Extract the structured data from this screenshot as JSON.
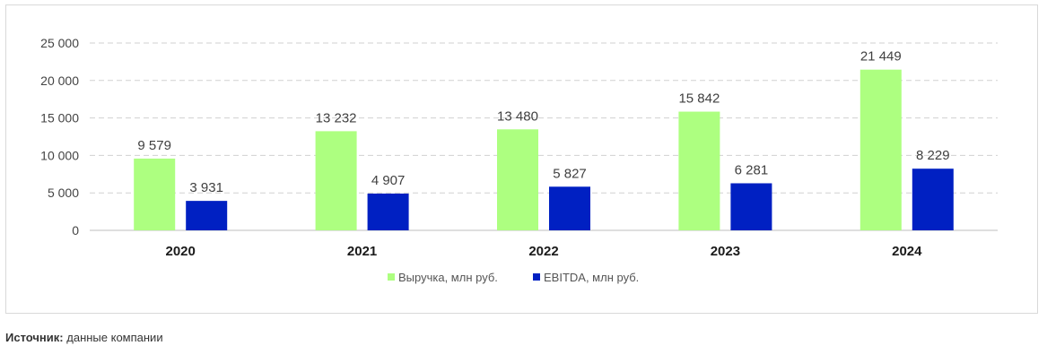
{
  "chart_data": {
    "type": "bar",
    "categories": [
      "2020",
      "2021",
      "2022",
      "2023",
      "2024"
    ],
    "series": [
      {
        "name": "Выручка, млн руб.",
        "values": [
          9579,
          13232,
          13480,
          15842,
          21449
        ],
        "value_labels": [
          "9 579",
          "13 232",
          "13 480",
          "15 842",
          "21 449"
        ],
        "color": "#adff80"
      },
      {
        "name": "EBITDA, млн руб.",
        "values": [
          3931,
          4907,
          5827,
          6281,
          8229
        ],
        "value_labels": [
          "3 931",
          "4 907",
          "5 827",
          "6 281",
          "8 229"
        ],
        "color": "#0020c2"
      }
    ],
    "yticks": [
      0,
      5000,
      10000,
      15000,
      20000,
      25000
    ],
    "ytick_labels": [
      "0",
      "5 000",
      "10 000",
      "15 000",
      "20 000",
      "25 000"
    ],
    "ylim": [
      0,
      25000
    ],
    "grid": true,
    "legend_position": "bottom-center",
    "title": "",
    "xlabel": "",
    "ylabel": ""
  },
  "source": {
    "label": "Источник:",
    "text": "данные компании"
  }
}
